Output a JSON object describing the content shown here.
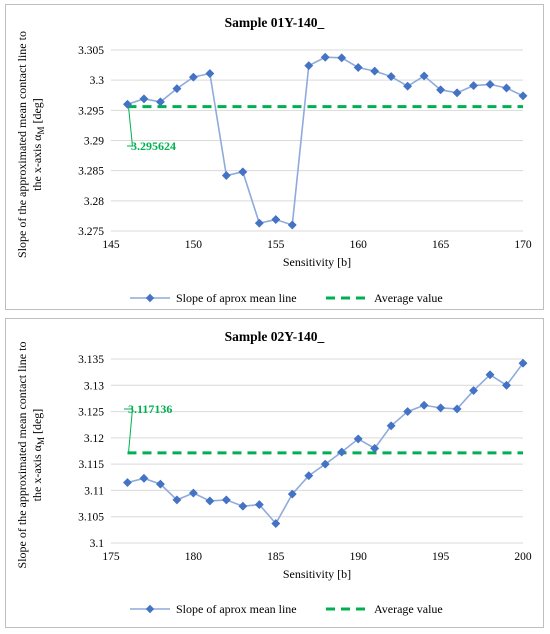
{
  "chart_data": [
    {
      "type": "line",
      "title": "Sample 01Y-140_",
      "xlabel": "Sensitivity [b]",
      "ylabel": {
        "prefix": "Slope of the approximated mean contact line to",
        "line2": "the x-axis α",
        "sub": "M",
        "suffix": " [deg]"
      },
      "x_ticks": [
        "145",
        "150",
        "155",
        "160",
        "165",
        "170"
      ],
      "y_ticks": [
        "3.275",
        "3.28",
        "3.285",
        "3.29",
        "3.295",
        "3.3",
        "3.305"
      ],
      "xlim": [
        145,
        170
      ],
      "ylim": [
        3.275,
        3.305
      ],
      "grid": "horizontal",
      "legend_position": "bottom",
      "x": [
        146,
        147,
        148,
        149,
        150,
        151,
        152,
        153,
        154,
        155,
        156,
        157,
        158,
        159,
        160,
        161,
        162,
        163,
        164,
        165,
        166,
        167,
        168,
        169,
        170
      ],
      "series": [
        {
          "name": "Slope of aprox mean line",
          "values": [
            3.296,
            3.2969,
            3.2964,
            3.2986,
            3.3005,
            3.3011,
            3.2842,
            3.2848,
            3.2763,
            3.2769,
            3.276,
            3.3024,
            3.3038,
            3.3037,
            3.3021,
            3.3015,
            3.3006,
            3.299,
            3.3007,
            3.2984,
            3.2979,
            3.2991,
            3.2993,
            3.2987,
            3.2974
          ],
          "color": "#4472C4",
          "marker": "diamond"
        },
        {
          "name": "Average value",
          "constant": 3.295624,
          "color": "#00B050",
          "style": "dashed"
        }
      ],
      "annotation": {
        "text": "3.295624",
        "color": "#00B050"
      }
    },
    {
      "type": "line",
      "title": "Sample 02Y-140_",
      "xlabel": "Sensitivity [b]",
      "ylabel": {
        "prefix": "Slope of the approximated mean contact line to",
        "line2": "the x-axis α",
        "sub": "M",
        "suffix": " [deg]"
      },
      "x_ticks": [
        "175",
        "180",
        "185",
        "190",
        "195",
        "200"
      ],
      "y_ticks": [
        "3.1",
        "3.105",
        "3.11",
        "3.115",
        "3.12",
        "3.125",
        "3.13",
        "3.135"
      ],
      "xlim": [
        175,
        200
      ],
      "ylim": [
        3.1,
        3.135
      ],
      "grid": "horizontal",
      "legend_position": "bottom",
      "x": [
        176,
        177,
        178,
        179,
        180,
        181,
        182,
        183,
        184,
        185,
        186,
        187,
        188,
        189,
        190,
        191,
        192,
        193,
        194,
        195,
        196,
        197,
        198,
        199,
        200
      ],
      "series": [
        {
          "name": "Slope of aprox mean line",
          "values": [
            3.1115,
            3.1123,
            3.1112,
            3.1082,
            3.1095,
            3.108,
            3.1082,
            3.107,
            3.1073,
            3.1037,
            3.1093,
            3.1128,
            3.115,
            3.1173,
            3.1198,
            3.118,
            3.1223,
            3.125,
            3.1262,
            3.1257,
            3.1255,
            3.129,
            3.132,
            3.13,
            3.1342
          ],
          "color": "#4472C4",
          "marker": "diamond"
        },
        {
          "name": "Average value",
          "constant": 3.117136,
          "color": "#00B050",
          "style": "dashed"
        }
      ],
      "annotation": {
        "text": "3.117136",
        "color": "#00B050"
      }
    }
  ]
}
